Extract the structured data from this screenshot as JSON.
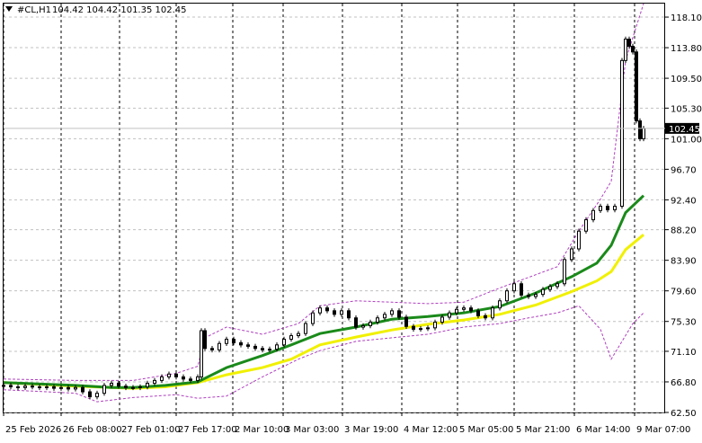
{
  "header": {
    "symbol": "#CL,H1",
    "ohlc": "104.42 104.42 101.35 102.45",
    "triangle_icon": "triangle-down-icon"
  },
  "price_axis": {
    "ticks": [
      "118.10",
      "113.80",
      "109.50",
      "105.30",
      "101.00",
      "96.70",
      "92.40",
      "88.20",
      "83.90",
      "79.60",
      "75.30",
      "71.10",
      "66.80",
      "62.50"
    ],
    "current_price_label": "102.45"
  },
  "time_axis": {
    "ticks": [
      "25 Feb 2026",
      "26 Feb 08:00",
      "27 Feb 01:00",
      "27 Feb 17:00",
      "2 Mar 10:00",
      "3 Mar 03:00",
      "3 Mar 19:00",
      "4 Mar 12:00",
      "5 Mar 05:00",
      "5 Mar 21:00",
      "6 Mar 14:00",
      "9 Mar 07:00"
    ]
  },
  "colors": {
    "background": "#ffffff",
    "candles": "#000000",
    "ma_fast": "#1a8a1a",
    "ma_slow": "#f0f000",
    "bands": "#b040c0",
    "grid": "#c0c0c0"
  },
  "chart_data": {
    "type": "candlestick",
    "timeframe": "H1",
    "ylim": [
      62.5,
      120.0
    ],
    "y_ticks": [
      118.1,
      113.8,
      109.5,
      105.3,
      101.0,
      96.7,
      92.4,
      88.2,
      83.9,
      79.6,
      75.3,
      71.1,
      66.8,
      62.5
    ],
    "last_close": 102.45,
    "last_bar": {
      "open": 104.42,
      "high": 104.42,
      "low": 101.35,
      "close": 102.45
    },
    "price_series": [
      [
        0,
        66.3
      ],
      [
        4,
        66.1
      ],
      [
        8,
        66.0
      ],
      [
        12,
        66.2
      ],
      [
        16,
        66.1
      ],
      [
        20,
        66.0
      ],
      [
        24,
        66.1
      ],
      [
        28,
        65.9
      ],
      [
        32,
        66.0
      ],
      [
        36,
        65.8
      ],
      [
        40,
        66.0
      ],
      [
        44,
        65.4
      ],
      [
        48,
        64.7
      ],
      [
        52,
        65.2
      ],
      [
        56,
        66.3
      ],
      [
        60,
        66.6
      ],
      [
        64,
        66.2
      ],
      [
        68,
        66.0
      ],
      [
        72,
        66.0
      ],
      [
        76,
        66.1
      ],
      [
        80,
        66.6
      ],
      [
        84,
        67.0
      ],
      [
        88,
        67.5
      ],
      [
        92,
        67.9
      ],
      [
        96,
        67.5
      ],
      [
        100,
        67.2
      ],
      [
        104,
        67.0
      ],
      [
        108,
        67.5
      ],
      [
        110,
        74.0
      ],
      [
        112,
        71.5
      ],
      [
        116,
        71.3
      ],
      [
        120,
        72.2
      ],
      [
        124,
        72.8
      ],
      [
        128,
        72.3
      ],
      [
        132,
        72.0
      ],
      [
        136,
        71.8
      ],
      [
        140,
        71.5
      ],
      [
        144,
        71.3
      ],
      [
        148,
        71.4
      ],
      [
        152,
        72.0
      ],
      [
        156,
        72.8
      ],
      [
        160,
        73.3
      ],
      [
        164,
        73.6
      ],
      [
        168,
        75.0
      ],
      [
        172,
        76.5
      ],
      [
        176,
        77.2
      ],
      [
        180,
        76.8
      ],
      [
        184,
        76.3
      ],
      [
        188,
        76.8
      ],
      [
        192,
        75.8
      ],
      [
        196,
        74.5
      ],
      [
        200,
        74.7
      ],
      [
        204,
        75.2
      ],
      [
        208,
        75.8
      ],
      [
        212,
        76.3
      ],
      [
        216,
        76.8
      ],
      [
        220,
        75.9
      ],
      [
        224,
        74.6
      ],
      [
        228,
        74.2
      ],
      [
        232,
        74.3
      ],
      [
        236,
        74.4
      ],
      [
        240,
        75.2
      ],
      [
        244,
        75.9
      ],
      [
        248,
        76.5
      ],
      [
        252,
        77.0
      ],
      [
        256,
        77.2
      ],
      [
        260,
        76.8
      ],
      [
        264,
        76.1
      ],
      [
        268,
        75.8
      ],
      [
        272,
        77.2
      ],
      [
        276,
        78.2
      ],
      [
        280,
        79.6
      ],
      [
        284,
        80.6
      ],
      [
        288,
        79.0
      ],
      [
        292,
        78.8
      ],
      [
        296,
        79.1
      ],
      [
        300,
        79.8
      ],
      [
        304,
        80.2
      ],
      [
        308,
        80.6
      ],
      [
        312,
        84.0
      ],
      [
        316,
        85.5
      ],
      [
        320,
        88.0
      ],
      [
        324,
        89.6
      ],
      [
        328,
        90.9
      ],
      [
        332,
        91.5
      ],
      [
        336,
        91.0
      ],
      [
        340,
        91.5
      ],
      [
        344,
        112.0
      ],
      [
        346,
        115.0
      ],
      [
        348,
        114.0
      ],
      [
        350,
        113.2
      ],
      [
        352,
        103.5
      ],
      [
        354,
        101.0
      ],
      [
        356,
        102.45
      ]
    ],
    "ma_fast_series": [
      [
        0,
        66.7
      ],
      [
        40,
        66.3
      ],
      [
        60,
        66.0
      ],
      [
        72,
        66.0
      ],
      [
        90,
        66.3
      ],
      [
        108,
        66.8
      ],
      [
        124,
        68.8
      ],
      [
        144,
        70.5
      ],
      [
        160,
        72.0
      ],
      [
        176,
        73.6
      ],
      [
        196,
        74.5
      ],
      [
        216,
        75.6
      ],
      [
        236,
        76.0
      ],
      [
        256,
        76.5
      ],
      [
        276,
        77.4
      ],
      [
        296,
        79.3
      ],
      [
        316,
        81.6
      ],
      [
        330,
        83.5
      ],
      [
        338,
        86.0
      ],
      [
        346,
        90.6
      ],
      [
        356,
        93.0
      ]
    ],
    "ma_slow_series": [
      [
        0,
        66.7
      ],
      [
        40,
        66.2
      ],
      [
        60,
        66.0
      ],
      [
        72,
        65.9
      ],
      [
        90,
        66.1
      ],
      [
        108,
        66.7
      ],
      [
        124,
        67.8
      ],
      [
        144,
        68.8
      ],
      [
        160,
        70.0
      ],
      [
        176,
        72.0
      ],
      [
        196,
        73.1
      ],
      [
        216,
        74.1
      ],
      [
        236,
        74.9
      ],
      [
        256,
        75.5
      ],
      [
        276,
        76.3
      ],
      [
        296,
        77.6
      ],
      [
        316,
        79.5
      ],
      [
        330,
        81.0
      ],
      [
        338,
        82.3
      ],
      [
        346,
        85.4
      ],
      [
        356,
        87.5
      ]
    ],
    "band_upper_series": [
      [
        0,
        67.2
      ],
      [
        40,
        67.0
      ],
      [
        72,
        67.0
      ],
      [
        96,
        68.0
      ],
      [
        108,
        69.0
      ],
      [
        112,
        73.0
      ],
      [
        124,
        74.5
      ],
      [
        144,
        73.5
      ],
      [
        164,
        75.0
      ],
      [
        176,
        77.5
      ],
      [
        196,
        78.2
      ],
      [
        216,
        78.0
      ],
      [
        236,
        77.8
      ],
      [
        256,
        78.0
      ],
      [
        276,
        80.0
      ],
      [
        292,
        81.5
      ],
      [
        308,
        83.0
      ],
      [
        320,
        88.0
      ],
      [
        332,
        92.5
      ],
      [
        338,
        95.0
      ],
      [
        346,
        112.0
      ],
      [
        356,
        120.0
      ]
    ],
    "band_lower_series": [
      [
        0,
        65.7
      ],
      [
        40,
        65.2
      ],
      [
        52,
        64.0
      ],
      [
        72,
        64.6
      ],
      [
        96,
        65.0
      ],
      [
        108,
        64.5
      ],
      [
        124,
        64.8
      ],
      [
        144,
        67.5
      ],
      [
        164,
        70.0
      ],
      [
        176,
        71.2
      ],
      [
        196,
        72.5
      ],
      [
        216,
        73.0
      ],
      [
        236,
        73.5
      ],
      [
        256,
        74.5
      ],
      [
        276,
        75.0
      ],
      [
        292,
        75.8
      ],
      [
        308,
        76.5
      ],
      [
        320,
        77.5
      ],
      [
        332,
        74.2
      ],
      [
        338,
        70.0
      ],
      [
        344,
        72.5
      ],
      [
        350,
        75.0
      ],
      [
        356,
        76.5
      ]
    ]
  }
}
